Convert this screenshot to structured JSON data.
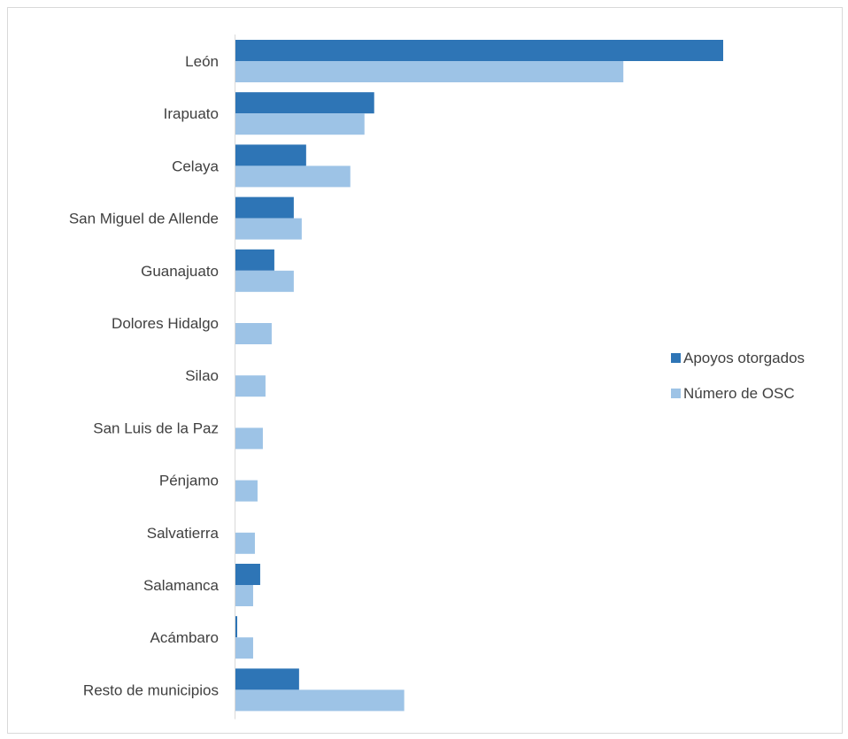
{
  "chart_data": {
    "type": "bar",
    "orientation": "horizontal",
    "categories": [
      "León",
      "Irapuato",
      "Celaya",
      "San Miguel de Allende",
      "Guanajuato",
      "Dolores Hidalgo",
      "Silao",
      "San Luis de la Paz",
      "Pénjamo",
      "Salvatierra",
      "Salamanca",
      "Acámbaro",
      "Resto de municipios"
    ],
    "series": [
      {
        "name": "Apoyos otorgados",
        "color": "#2e75b6",
        "values": [
          552,
          157,
          80,
          66,
          44,
          0,
          0,
          0,
          0,
          0,
          28,
          2,
          72
        ]
      },
      {
        "name": "Número de OSC",
        "color": "#9dc3e6",
        "values": [
          439,
          146,
          130,
          75,
          66,
          41,
          34,
          31,
          25,
          22,
          20,
          20,
          191
        ]
      }
    ],
    "xlim": [
      0,
      600
    ],
    "grid": false,
    "legend": "right",
    "title": "",
    "xlabel": "",
    "ylabel": ""
  }
}
